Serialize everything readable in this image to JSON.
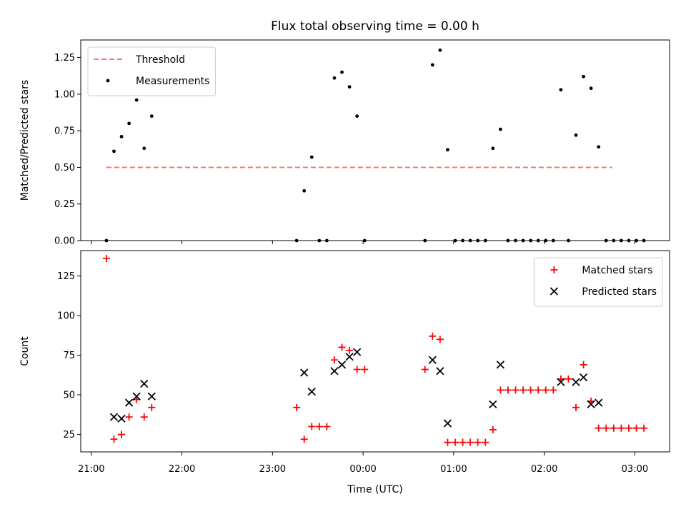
{
  "chart_data": {
    "title": "Flux total observing time = 0.00 h",
    "xlabel": "Time (UTC)",
    "x_tick_labels": [
      "21:00",
      "22:00",
      "23:00",
      "00:00",
      "01:00",
      "02:00",
      "03:00"
    ],
    "x_ticks": [
      "21:00",
      "22:00",
      "23:00",
      "24:00",
      "25:00",
      "26:00",
      "27:00"
    ],
    "xlim": [
      "20:53",
      "27:23"
    ],
    "time_note": "times after 24:00 are on the following day",
    "panels": [
      {
        "type": "scatter",
        "ylabel": "Matched/Predicted stars",
        "ylim": [
          0,
          1.37
        ],
        "y_ticks": [
          0.0,
          0.25,
          0.5,
          0.75,
          1.0,
          1.25
        ],
        "y_tick_labels": [
          "0.00",
          "0.25",
          "0.50",
          "0.75",
          "1.00",
          "1.25"
        ],
        "grid": false,
        "legend_position": "top-left",
        "threshold": {
          "name": "Threshold",
          "value": 0.5,
          "x_range": [
            "21:10",
            "26:45"
          ],
          "color": "#f47878",
          "style": "dashed"
        },
        "series": [
          {
            "name": "Measurements",
            "color": "#000000",
            "marker": "dot",
            "points": [
              [
                "21:10",
                0.0
              ],
              [
                "21:15",
                0.61
              ],
              [
                "21:20",
                0.71
              ],
              [
                "21:25",
                0.8
              ],
              [
                "21:30",
                0.96
              ],
              [
                "21:35",
                0.63
              ],
              [
                "21:40",
                0.85
              ],
              [
                "23:16",
                0.0
              ],
              [
                "23:21",
                0.34
              ],
              [
                "23:26",
                0.57
              ],
              [
                "23:31",
                0.0
              ],
              [
                "23:36",
                0.0
              ],
              [
                "23:41",
                1.11
              ],
              [
                "23:46",
                1.15
              ],
              [
                "23:51",
                1.05
              ],
              [
                "23:56",
                0.85
              ],
              [
                "24:01",
                0.0
              ],
              [
                "24:41",
                0.0
              ],
              [
                "24:46",
                1.2
              ],
              [
                "24:51",
                1.3
              ],
              [
                "24:56",
                0.62
              ],
              [
                "25:01",
                0.0
              ],
              [
                "25:06",
                0.0
              ],
              [
                "25:11",
                0.0
              ],
              [
                "25:16",
                0.0
              ],
              [
                "25:21",
                0.0
              ],
              [
                "25:26",
                0.63
              ],
              [
                "25:31",
                0.76
              ],
              [
                "25:36",
                0.0
              ],
              [
                "25:41",
                0.0
              ],
              [
                "25:46",
                0.0
              ],
              [
                "25:51",
                0.0
              ],
              [
                "25:56",
                0.0
              ],
              [
                "26:01",
                0.0
              ],
              [
                "26:06",
                0.0
              ],
              [
                "26:11",
                1.03
              ],
              [
                "26:16",
                0.0
              ],
              [
                "26:21",
                0.72
              ],
              [
                "26:26",
                1.12
              ],
              [
                "26:31",
                1.04
              ],
              [
                "26:36",
                0.64
              ],
              [
                "26:41",
                0.0
              ],
              [
                "26:46",
                0.0
              ],
              [
                "26:51",
                0.0
              ],
              [
                "26:56",
                0.0
              ],
              [
                "27:01",
                0.0
              ],
              [
                "27:06",
                0.0
              ]
            ]
          }
        ]
      },
      {
        "type": "scatter",
        "ylabel": "Count",
        "ylim": [
          14,
          141
        ],
        "y_ticks": [
          25,
          50,
          75,
          100,
          125
        ],
        "y_tick_labels": [
          "25",
          "50",
          "75",
          "100",
          "125"
        ],
        "grid": false,
        "legend_position": "top-right",
        "series": [
          {
            "name": "Matched stars",
            "color": "#ff0000",
            "marker": "plus",
            "points": [
              [
                "21:10",
                136
              ],
              [
                "21:15",
                22
              ],
              [
                "21:20",
                25
              ],
              [
                "21:25",
                36
              ],
              [
                "21:30",
                47
              ],
              [
                "21:35",
                36
              ],
              [
                "21:40",
                42
              ],
              [
                "23:16",
                42
              ],
              [
                "23:21",
                22
              ],
              [
                "23:26",
                30
              ],
              [
                "23:31",
                30
              ],
              [
                "23:36",
                30
              ],
              [
                "23:41",
                72
              ],
              [
                "23:46",
                80
              ],
              [
                "23:51",
                78
              ],
              [
                "23:56",
                66
              ],
              [
                "24:01",
                66
              ],
              [
                "24:41",
                66
              ],
              [
                "24:46",
                87
              ],
              [
                "24:51",
                85
              ],
              [
                "24:56",
                20
              ],
              [
                "25:01",
                20
              ],
              [
                "25:06",
                20
              ],
              [
                "25:11",
                20
              ],
              [
                "25:16",
                20
              ],
              [
                "25:21",
                20
              ],
              [
                "25:26",
                28
              ],
              [
                "25:31",
                53
              ],
              [
                "25:36",
                53
              ],
              [
                "25:41",
                53
              ],
              [
                "25:46",
                53
              ],
              [
                "25:51",
                53
              ],
              [
                "25:56",
                53
              ],
              [
                "26:01",
                53
              ],
              [
                "26:06",
                53
              ],
              [
                "26:11",
                60
              ],
              [
                "26:16",
                60
              ],
              [
                "26:21",
                42
              ],
              [
                "26:26",
                69
              ],
              [
                "26:31",
                46
              ],
              [
                "26:36",
                29
              ],
              [
                "26:41",
                29
              ],
              [
                "26:46",
                29
              ],
              [
                "26:51",
                29
              ],
              [
                "26:56",
                29
              ],
              [
                "27:01",
                29
              ],
              [
                "27:06",
                29
              ]
            ]
          },
          {
            "name": "Predicted stars",
            "color": "#000000",
            "marker": "x",
            "points": [
              [
                "21:15",
                36
              ],
              [
                "21:20",
                35
              ],
              [
                "21:25",
                45
              ],
              [
                "21:30",
                49
              ],
              [
                "21:35",
                57
              ],
              [
                "21:40",
                49
              ],
              [
                "23:21",
                64
              ],
              [
                "23:26",
                52
              ],
              [
                "23:41",
                65
              ],
              [
                "23:46",
                69
              ],
              [
                "23:51",
                74
              ],
              [
                "23:56",
                77
              ],
              [
                "24:46",
                72
              ],
              [
                "24:51",
                65
              ],
              [
                "24:56",
                32
              ],
              [
                "25:26",
                44
              ],
              [
                "25:31",
                69
              ],
              [
                "26:11",
                58
              ],
              [
                "26:21",
                58
              ],
              [
                "26:26",
                61
              ],
              [
                "26:31",
                44
              ],
              [
                "26:36",
                45
              ]
            ]
          }
        ]
      }
    ]
  }
}
